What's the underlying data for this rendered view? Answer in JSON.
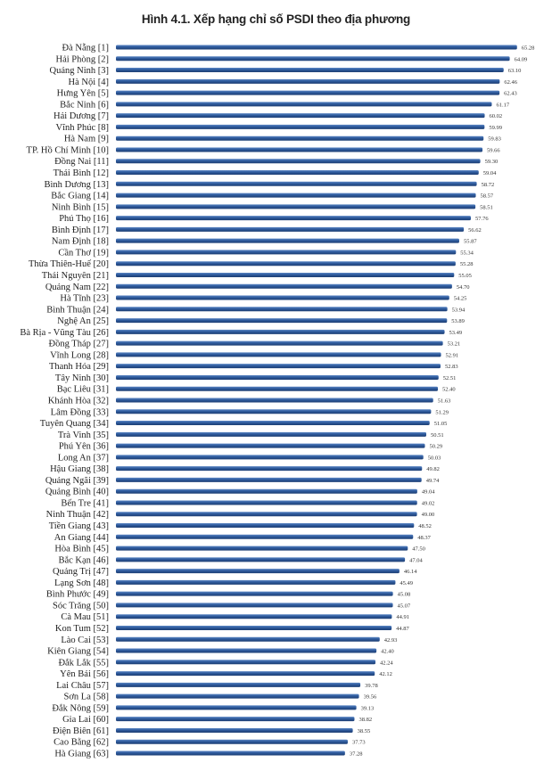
{
  "chart_data": {
    "type": "bar",
    "orientation": "horizontal",
    "title": "Hình 4.1. Xếp hạng chỉ số PSDI theo địa phương",
    "xlabel": "",
    "ylabel": "",
    "xlim": [
      0,
      66
    ],
    "grid": false,
    "bar_color": "#2e5a9c",
    "categories": [
      "Đà Nẵng [1]",
      "Hải Phòng [2]",
      "Quảng Ninh [3]",
      "Hà Nội [4]",
      "Hưng Yên [5]",
      "Bắc Ninh [6]",
      "Hải Dương [7]",
      "Vĩnh Phúc [8]",
      "Hà Nam [9]",
      "TP. Hồ Chí Minh [10]",
      "Đồng Nai [11]",
      "Thái Bình [12]",
      "Bình Dương [13]",
      "Bắc Giang [14]",
      "Ninh Bình [15]",
      "Phú Thọ [16]",
      "Bình Định [17]",
      "Nam Định [18]",
      "Cần Thơ [19]",
      "Thừa Thiên-Huế [20]",
      "Thái Nguyên [21]",
      "Quảng Nam [22]",
      "Hà Tĩnh [23]",
      "Bình Thuận [24]",
      "Nghệ An [25]",
      "Bà Rịa - Vũng Tàu [26]",
      "Đồng Tháp [27]",
      "Vĩnh Long [28]",
      "Thanh Hóa [29]",
      "Tây Ninh [30]",
      "Bạc Liêu [31]",
      "Khánh Hòa [32]",
      "Lâm Đồng [33]",
      "Tuyên Quang [34]",
      "Trà Vinh [35]",
      "Phú Yên [36]",
      "Long An [37]",
      "Hậu Giang [38]",
      "Quảng Ngãi [39]",
      "Quảng Bình [40]",
      "Bến Tre [41]",
      "Ninh Thuận [42]",
      "Tiền Giang [43]",
      "An Giang [44]",
      "Hòa Bình [45]",
      "Bắc Kạn [46]",
      "Quảng Trị [47]",
      "Lạng Sơn [48]",
      "Bình Phước [49]",
      "Sóc Trăng [50]",
      "Cà Mau [51]",
      "Kon Tum [52]",
      "Lào Cai [53]",
      "Kiên Giang [54]",
      "Đắk Lắk [55]",
      "Yên Bái [56]",
      "Lai Châu [57]",
      "Sơn La [58]",
      "Đắk Nông [59]",
      "Gia Lai [60]",
      "Điện Biên [61]",
      "Cao Bằng [62]",
      "Hà Giang [63]"
    ],
    "values": [
      65.28,
      64.09,
      63.1,
      62.46,
      62.43,
      61.17,
      60.02,
      59.99,
      59.83,
      59.66,
      59.3,
      59.04,
      58.72,
      58.57,
      58.51,
      57.76,
      56.62,
      55.87,
      55.34,
      55.28,
      55.05,
      54.7,
      54.25,
      53.94,
      53.89,
      53.49,
      53.21,
      52.91,
      52.83,
      52.51,
      52.4,
      51.63,
      51.29,
      51.05,
      50.51,
      50.29,
      50.03,
      49.82,
      49.74,
      49.04,
      49.02,
      49.0,
      48.52,
      48.37,
      47.5,
      47.04,
      46.14,
      45.49,
      45.08,
      45.07,
      44.91,
      44.87,
      42.93,
      42.4,
      42.24,
      42.12,
      39.78,
      39.56,
      39.13,
      38.82,
      38.55,
      37.73,
      37.28
    ]
  }
}
